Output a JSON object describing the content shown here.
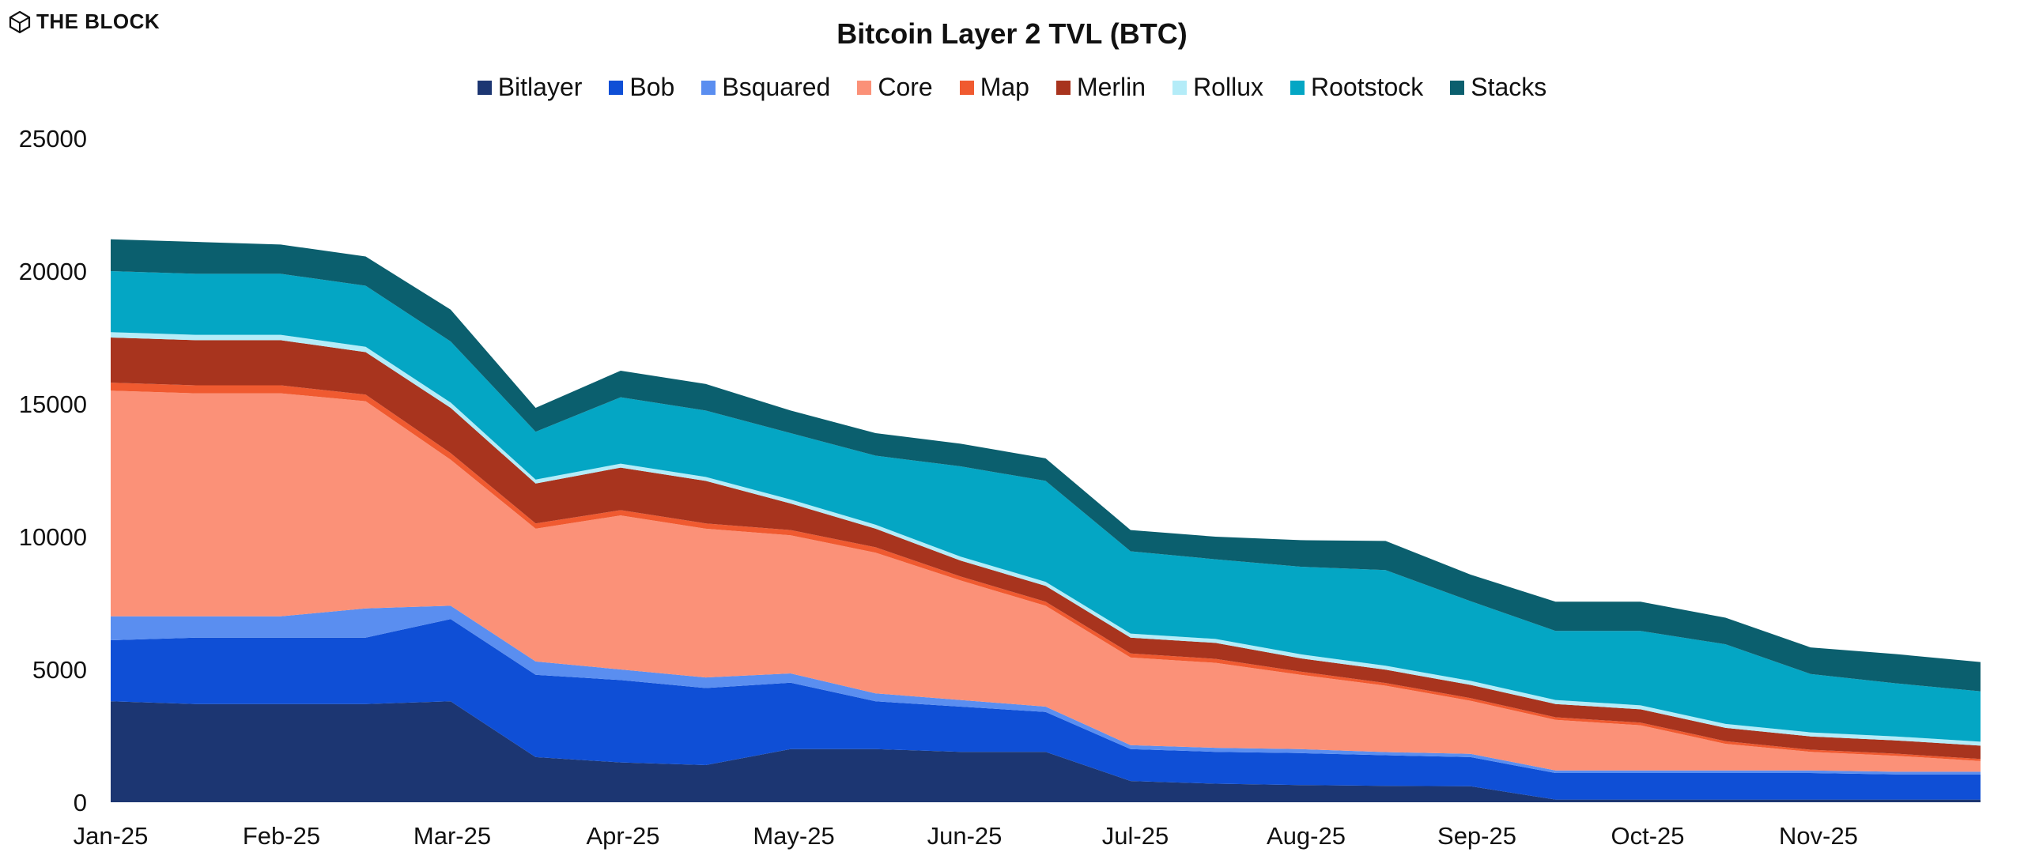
{
  "brand": {
    "name": "THE BLOCK"
  },
  "chart_data": {
    "type": "area",
    "stacked": true,
    "title": "Bitcoin Layer 2 TVL (BTC)",
    "xlabel": "",
    "ylabel": "",
    "ylim": [
      0,
      25000
    ],
    "yticks": [
      0,
      5000,
      10000,
      15000,
      20000,
      25000
    ],
    "grid": false,
    "legend_position": "top-center",
    "x": [
      "Jan-25",
      "Jan-25b",
      "Feb-25",
      "Feb-25b",
      "Mar-25",
      "Mar-25b",
      "Apr-25",
      "Apr-25b",
      "May-25",
      "May-25b",
      "Jun-25",
      "Jun-25b",
      "Jul-25",
      "Jul-25b",
      "Aug-25",
      "Aug-25b",
      "Sep-25",
      "Sep-25b",
      "Oct-25",
      "Oct-25b",
      "Nov-25",
      "Nov-25b",
      "Dec-25"
    ],
    "x_tick_labels": [
      "Jan-25",
      "Feb-25",
      "Mar-25",
      "Apr-25",
      "May-25",
      "Jun-25",
      "Jul-25",
      "Aug-25",
      "Sep-25",
      "Oct-25",
      "Nov-25"
    ],
    "series": [
      {
        "name": "Bitlayer",
        "color": "#1c3672",
        "values": [
          3800,
          3700,
          3700,
          3700,
          3800,
          1700,
          1500,
          1400,
          2000,
          2000,
          1900,
          1900,
          800,
          700,
          650,
          620,
          600,
          100,
          100,
          100,
          100,
          100,
          100
        ]
      },
      {
        "name": "Bob",
        "color": "#0f4fd6",
        "values": [
          2300,
          2500,
          2500,
          2500,
          3100,
          3100,
          3100,
          2900,
          2500,
          1800,
          1700,
          1500,
          1200,
          1200,
          1200,
          1150,
          1100,
          1000,
          1000,
          1000,
          1000,
          950,
          950
        ]
      },
      {
        "name": "Bsquared",
        "color": "#5a8ef0",
        "values": [
          900,
          800,
          800,
          1100,
          500,
          500,
          400,
          400,
          350,
          300,
          250,
          200,
          150,
          150,
          150,
          120,
          120,
          100,
          100,
          100,
          100,
          100,
          100
        ]
      },
      {
        "name": "Core",
        "color": "#fb9178",
        "values": [
          8500,
          8400,
          8400,
          7800,
          5500,
          5000,
          5800,
          5600,
          5200,
          5300,
          4500,
          3800,
          3300,
          3200,
          2800,
          2500,
          2000,
          1900,
          1700,
          1000,
          700,
          600,
          400
        ]
      },
      {
        "name": "Map",
        "color": "#f05a30",
        "values": [
          300,
          300,
          300,
          250,
          250,
          200,
          200,
          200,
          200,
          200,
          150,
          150,
          150,
          150,
          120,
          100,
          100,
          100,
          100,
          100,
          80,
          80,
          80
        ]
      },
      {
        "name": "Merlin",
        "color": "#a8341e",
        "values": [
          1700,
          1700,
          1700,
          1600,
          1700,
          1500,
          1600,
          1600,
          1000,
          700,
          600,
          600,
          600,
          600,
          500,
          500,
          500,
          500,
          500,
          500,
          500,
          500,
          500
        ]
      },
      {
        "name": "Rollux",
        "color": "#b4ecf8",
        "values": [
          200,
          200,
          200,
          200,
          200,
          150,
          150,
          150,
          150,
          150,
          150,
          150,
          150,
          150,
          150,
          150,
          150,
          150,
          150,
          150,
          150,
          150,
          150
        ]
      },
      {
        "name": "Rootstock",
        "color": "#04a6c4",
        "values": [
          2300,
          2300,
          2300,
          2300,
          2300,
          1800,
          2500,
          2500,
          2500,
          2600,
          3400,
          3800,
          3100,
          3000,
          3300,
          3600,
          3000,
          2600,
          2800,
          3000,
          2200,
          2000,
          1900
        ]
      },
      {
        "name": "Stacks",
        "color": "#0b5f6e",
        "values": [
          1200,
          1200,
          1100,
          1100,
          1200,
          900,
          1000,
          1000,
          850,
          850,
          850,
          850,
          800,
          850,
          1000,
          1100,
          1000,
          1100,
          1100,
          1000,
          1000,
          1100,
          1100
        ]
      }
    ]
  }
}
